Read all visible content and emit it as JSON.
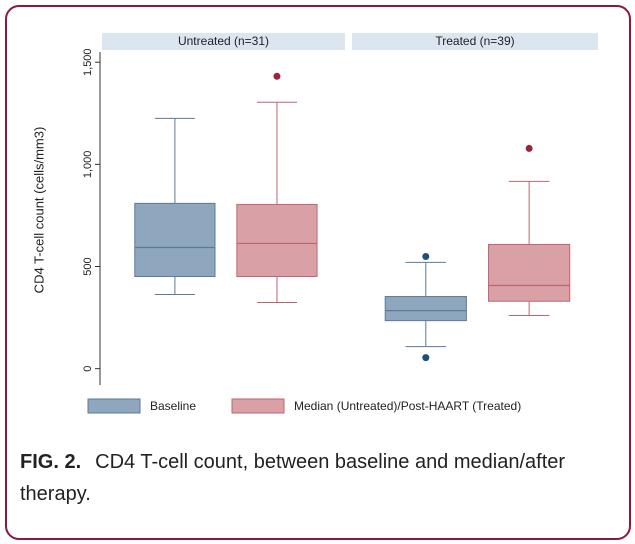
{
  "chart_data": {
    "type": "box",
    "ylabel": "CD4 T-cell count (cells/mm3)",
    "panels": [
      "Untreated (n=31)",
      "Treated (n=39)"
    ],
    "ylim": [
      -80,
      1550
    ],
    "yticks": [
      0,
      500,
      {
        "value": 1000,
        "label": "1,000"
      },
      {
        "value": 1500,
        "label": "1,500"
      }
    ],
    "series": [
      {
        "name": "Baseline",
        "color": "#8ea7be",
        "edge": "#5d7a96",
        "outlier_color": "#1f4e79",
        "whisker_low": [
          363,
          108
        ],
        "q1": [
          451,
          235
        ],
        "median": [
          593,
          284
        ],
        "q3": [
          809,
          353
        ],
        "whisker_high": [
          1225,
          520
        ],
        "outliers": [
          [],
          [
            549,
            54
          ]
        ]
      },
      {
        "name": "Median (Untreated)/Post-HAART (Treated)",
        "color": "#d9a0a6",
        "edge": "#c06470",
        "outlier_color": "#9b2335",
        "whisker_low": [
          324,
          260
        ],
        "q1": [
          451,
          330
        ],
        "median": [
          613,
          407
        ],
        "q3": [
          804,
          608
        ],
        "whisker_high": [
          1304,
          917
        ],
        "outliers": [
          [
            1431
          ],
          [
            1078
          ]
        ]
      }
    ]
  },
  "caption": {
    "label": "FIG. 2.",
    "text": "CD4 T-cell count, between baseline and median/after therapy."
  }
}
